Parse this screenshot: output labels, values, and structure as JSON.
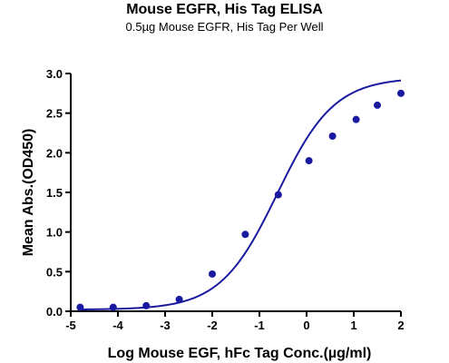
{
  "chart_data": {
    "type": "scatter",
    "title": "Mouse EGFR, His Tag ELISA",
    "subtitle": "0.5µg Mouse EGFR, His Tag Per Well",
    "xlabel": "Log Mouse EGF, hFc Tag Conc.(µg/ml)",
    "ylabel": "Mean Abs.(OD450)",
    "xlim": [
      -5,
      2
    ],
    "ylim": [
      0,
      3.0
    ],
    "xticks": [
      "-5",
      "-4",
      "-3",
      "-2",
      "-1",
      "0",
      "1",
      "2"
    ],
    "yticks": [
      "0.0",
      "0.5",
      "1.0",
      "1.5",
      "2.0",
      "2.5",
      "3.0"
    ],
    "grid": false,
    "legend": "none",
    "series": [
      {
        "x": [
          -4.8,
          -4.1,
          -3.4,
          -2.7,
          -2.0,
          -1.3,
          -0.6,
          0.05,
          0.55,
          1.05,
          1.5,
          2.0
        ],
        "y": [
          0.05,
          0.05,
          0.07,
          0.15,
          0.47,
          0.97,
          1.47,
          1.9,
          2.21,
          2.42,
          2.6,
          2.75
        ],
        "fit": "4PL sigmoid"
      }
    ],
    "color": "#1a1aa0"
  }
}
